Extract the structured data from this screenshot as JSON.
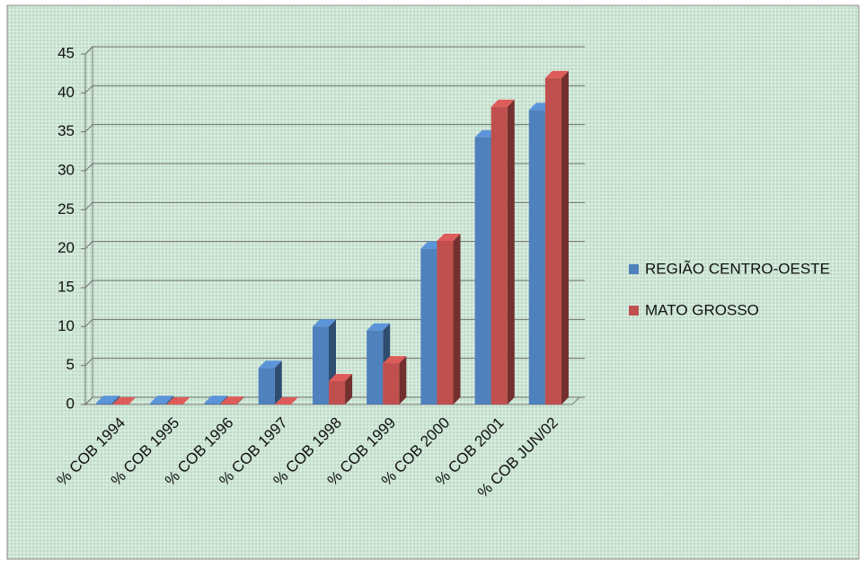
{
  "chart_data": {
    "type": "bar",
    "categories": [
      "% COB 1994",
      "% COB 1995",
      "% COB 1996",
      "% COB 1997",
      "% COB 1998",
      "% COB 1999",
      "% COB 2000",
      "% COB 2001",
      "% COB JUN/02"
    ],
    "series": [
      {
        "name": "REGIÃO CENTRO-OESTE",
        "color": "#4f81bd",
        "values": [
          0.2,
          0.2,
          0.2,
          4.7,
          10,
          9.5,
          20,
          34.3,
          37.8
        ]
      },
      {
        "name": "MATO GROSSO",
        "color": "#c0504d",
        "values": [
          0,
          0,
          0.1,
          0,
          3,
          5.3,
          21,
          38.2,
          41.9
        ]
      }
    ],
    "ylim": [
      0,
      45
    ],
    "yticks": [
      0,
      5,
      10,
      15,
      20,
      25,
      30,
      35,
      40,
      45
    ],
    "grid": true,
    "legend": "right"
  }
}
